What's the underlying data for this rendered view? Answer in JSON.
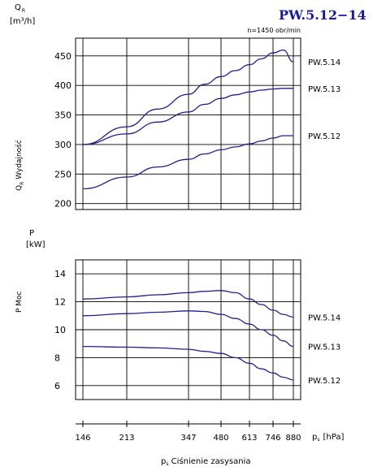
{
  "title": "PW.5.12−14",
  "speed_note": "n=1450 obr/min",
  "colors": {
    "curve": "#1f1f8f",
    "axis": "#000000",
    "grid": "#000000",
    "title": "#1a1aa0"
  },
  "chart_data": [
    {
      "type": "line",
      "ylabel_top": "Q",
      "ylabel_top_sub": "R",
      "yunit": "[m³/h]",
      "ylabel_side": "Q",
      "ylabel_side_sub": "R",
      "ylabel_side_text": " Wydajność",
      "ylim": [
        190,
        480
      ],
      "yticks": [
        200,
        250,
        300,
        350,
        400,
        450
      ],
      "x_positions": [
        146,
        213,
        347,
        480,
        613,
        746,
        880
      ],
      "series": [
        {
          "name": "PW.5.14",
          "x": [
            146,
            213,
            280,
            347,
            413,
            480,
            547,
            613,
            680,
            746,
            813,
            880
          ],
          "y": [
            300,
            330,
            360,
            385,
            402,
            415,
            425,
            435,
            445,
            455,
            460,
            440
          ]
        },
        {
          "name": "PW.5.13",
          "x": [
            146,
            213,
            280,
            347,
            413,
            480,
            547,
            613,
            680,
            746,
            813,
            880
          ],
          "y": [
            300,
            318,
            338,
            355,
            368,
            378,
            384,
            389,
            392,
            394,
            395,
            395
          ]
        },
        {
          "name": "PW.5.12",
          "x": [
            146,
            213,
            280,
            347,
            413,
            480,
            547,
            613,
            680,
            746,
            813,
            880
          ],
          "y": [
            225,
            245,
            262,
            275,
            284,
            291,
            296,
            301,
            306,
            311,
            315,
            315
          ]
        }
      ]
    },
    {
      "type": "line",
      "ylabel_top": "P",
      "yunit": "[kW]",
      "ylabel_side": "P  Moc",
      "ylim": [
        5,
        15
      ],
      "yticks": [
        6,
        8,
        10,
        12,
        14
      ],
      "xtick_labels": [
        "146",
        "213",
        "347",
        "480",
        "613",
        "746",
        "880"
      ],
      "x_unit_label": "p",
      "x_unit_sub": "s",
      "x_unit": "[hPa]",
      "xlabel": "p",
      "xlabel_sub": "s",
      "xlabel_text": "  Ciśnienie  zasysania",
      "series": [
        {
          "name": "PW.5.14",
          "x": [
            146,
            213,
            280,
            347,
            413,
            480,
            547,
            613,
            680,
            746,
            813,
            880
          ],
          "y": [
            12.2,
            12.35,
            12.5,
            12.65,
            12.75,
            12.8,
            12.65,
            12.2,
            11.8,
            11.4,
            11.1,
            10.9
          ]
        },
        {
          "name": "PW.5.13",
          "x": [
            146,
            213,
            280,
            347,
            413,
            480,
            547,
            613,
            680,
            746,
            813,
            880
          ],
          "y": [
            11.0,
            11.15,
            11.25,
            11.35,
            11.3,
            11.1,
            10.8,
            10.4,
            10.0,
            9.6,
            9.2,
            8.8
          ]
        },
        {
          "name": "PW.5.12",
          "x": [
            146,
            213,
            280,
            347,
            413,
            480,
            547,
            613,
            680,
            746,
            813,
            880
          ],
          "y": [
            8.8,
            8.75,
            8.7,
            8.6,
            8.45,
            8.3,
            8.0,
            7.6,
            7.2,
            6.9,
            6.6,
            6.4
          ]
        }
      ]
    }
  ]
}
